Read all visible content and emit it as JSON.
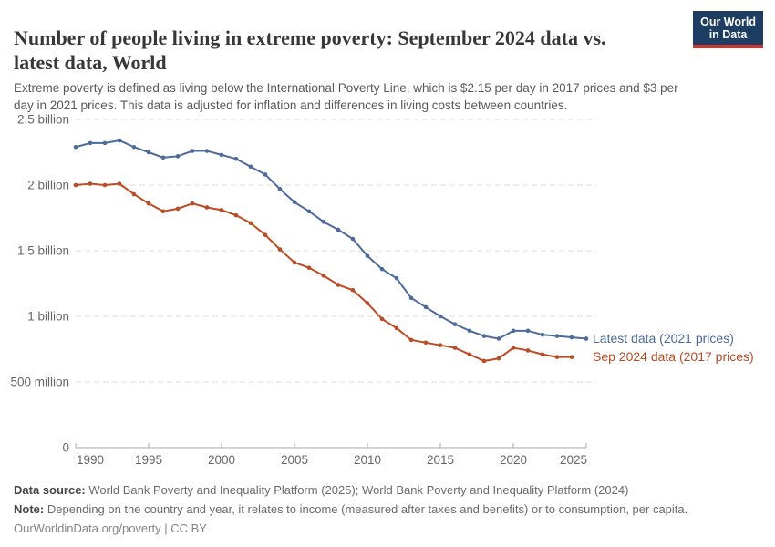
{
  "header": {
    "title_lines": [
      "Number of people living in extreme poverty: September 2024 data vs.",
      "latest data, World"
    ],
    "subtitle_lines": [
      "Extreme poverty is defined as living below the International Poverty Line, which is $2.15 per day in 2017 prices and $3 per",
      "day in 2021 prices. This data is adjusted for inflation and differences in living costs between countries."
    ],
    "logo": {
      "line1": "Our World",
      "line2": "in Data",
      "bg_color": "#1d3d63",
      "accent_color": "#d0342c"
    }
  },
  "chart_data": {
    "type": "line",
    "title": "Number of people living in extreme poverty: September 2024 data vs. latest data, World",
    "xlabel": "",
    "ylabel": "",
    "x": [
      1990,
      1991,
      1992,
      1993,
      1994,
      1995,
      1996,
      1997,
      1998,
      1999,
      2000,
      2001,
      2002,
      2003,
      2004,
      2005,
      2006,
      2007,
      2008,
      2009,
      2010,
      2011,
      2012,
      2013,
      2014,
      2015,
      2016,
      2017,
      2018,
      2019,
      2020,
      2021,
      2022,
      2023,
      2024,
      2025
    ],
    "series": [
      {
        "name": "Latest data (2021 prices)",
        "color": "#4C6A9C",
        "unit": "billion people",
        "values": [
          2.29,
          2.32,
          2.32,
          2.34,
          2.29,
          2.25,
          2.21,
          2.22,
          2.26,
          2.26,
          2.23,
          2.2,
          2.14,
          2.08,
          1.97,
          1.87,
          1.8,
          1.72,
          1.66,
          1.59,
          1.46,
          1.36,
          1.29,
          1.14,
          1.07,
          1.0,
          0.94,
          0.89,
          0.85,
          0.83,
          0.89,
          0.89,
          0.86,
          0.85,
          0.84,
          0.83
        ]
      },
      {
        "name": "Sep 2024 data (2017 prices)",
        "color": "#BC4A23",
        "unit": "billion people",
        "values": [
          2.0,
          2.01,
          2.0,
          2.01,
          1.93,
          1.86,
          1.8,
          1.82,
          1.86,
          1.83,
          1.81,
          1.77,
          1.71,
          1.62,
          1.51,
          1.41,
          1.37,
          1.31,
          1.24,
          1.2,
          1.1,
          0.98,
          0.91,
          0.82,
          0.8,
          0.78,
          0.76,
          0.71,
          0.66,
          0.68,
          0.76,
          0.74,
          0.71,
          0.69,
          0.69,
          null
        ]
      }
    ],
    "xlim": [
      1990,
      2025
    ],
    "ylim": [
      0,
      2.5
    ],
    "xticks": [
      1990,
      1995,
      2000,
      2005,
      2010,
      2015,
      2020,
      2025
    ],
    "yticks": [
      {
        "v": 0,
        "label": "0"
      },
      {
        "v": 0.5,
        "label": "500 million"
      },
      {
        "v": 1,
        "label": "1 billion"
      },
      {
        "v": 1.5,
        "label": "1.5 billion"
      },
      {
        "v": 2,
        "label": "2 billion"
      },
      {
        "v": 2.5,
        "label": "2.5 billion"
      }
    ],
    "grid": "horizontal-dashed",
    "grid_color": "#dddddd",
    "axis_color": "#a8a8a8",
    "tick_label_color": "#666666",
    "legend_position": "end-of-line"
  },
  "footer": {
    "datasource_label": "Data source:",
    "datasource": "World Bank Poverty and Inequality Platform (2025); World Bank Poverty and Inequality Platform (2024)",
    "note_label": "Note:",
    "note": "Depending on the country and year, it relates to income (measured after taxes and benefits) or to consumption, per capita.",
    "attribution": "OurWorldinData.org/poverty | CC BY"
  }
}
